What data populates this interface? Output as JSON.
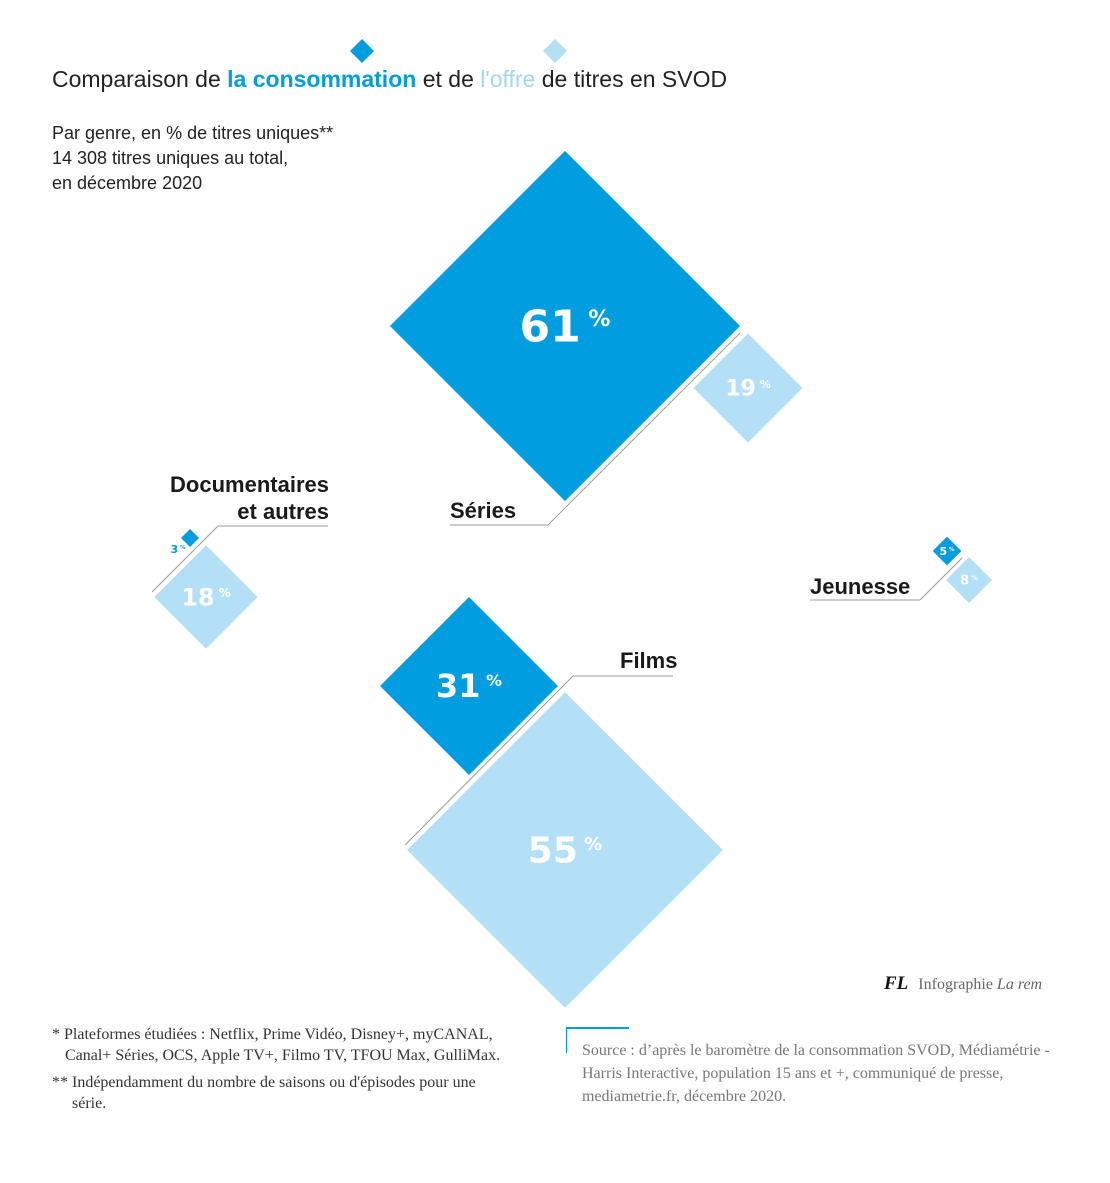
{
  "title": {
    "pre": "Comparaison de ",
    "consumption": "la consommation",
    "mid": " et de ",
    "offer": "l'offre",
    "post": " de titres en SVOD"
  },
  "subtitle": [
    "Par genre, en % de titres uniques**",
    "14 308 titres uniques au total,",
    "en décembre 2020"
  ],
  "colors": {
    "consumption": "#009ee0",
    "offer": "#b3dff7",
    "leader_line": "#999999"
  },
  "legend_icons": [
    "diamond-consumption-icon",
    "diamond-offer-icon"
  ],
  "chart_data": {
    "type": "diamond-proportional",
    "unit": "%",
    "series": [
      {
        "key": "consumption",
        "color": "#009ee0"
      },
      {
        "key": "offer",
        "color": "#b3dff7"
      }
    ],
    "categories": [
      {
        "label": "Séries",
        "consumption": 61,
        "offer": 19
      },
      {
        "label": "Films",
        "consumption": 31,
        "offer": 55
      },
      {
        "label": "Documentaires et autres",
        "label_lines": [
          "Documentaires",
          "et autres"
        ],
        "consumption": 3,
        "offer": 18
      },
      {
        "label": "Jeunesse",
        "consumption": 5,
        "offer": 8
      }
    ]
  },
  "notes": {
    "note1": "* Plateformes étudiées : Netflix, Prime Vidéo, Disney+, myCANAL, Canal+ Séries, OCS, Apple TV+, Filmo TV, TFOU Max, GulliMax.",
    "note2": "** Indépendamment du nombre de saisons ou d'épisodes pour une série."
  },
  "source": "Source : d’après le baromètre de la consommation SVOD, Médiamétrie - Harris Interactive,  population 15 ans et +, communiqué de presse, mediametrie.fr, décembre 2020.",
  "credit": {
    "initials": "FL",
    "text": "Infographie ",
    "publication": "La rem"
  }
}
